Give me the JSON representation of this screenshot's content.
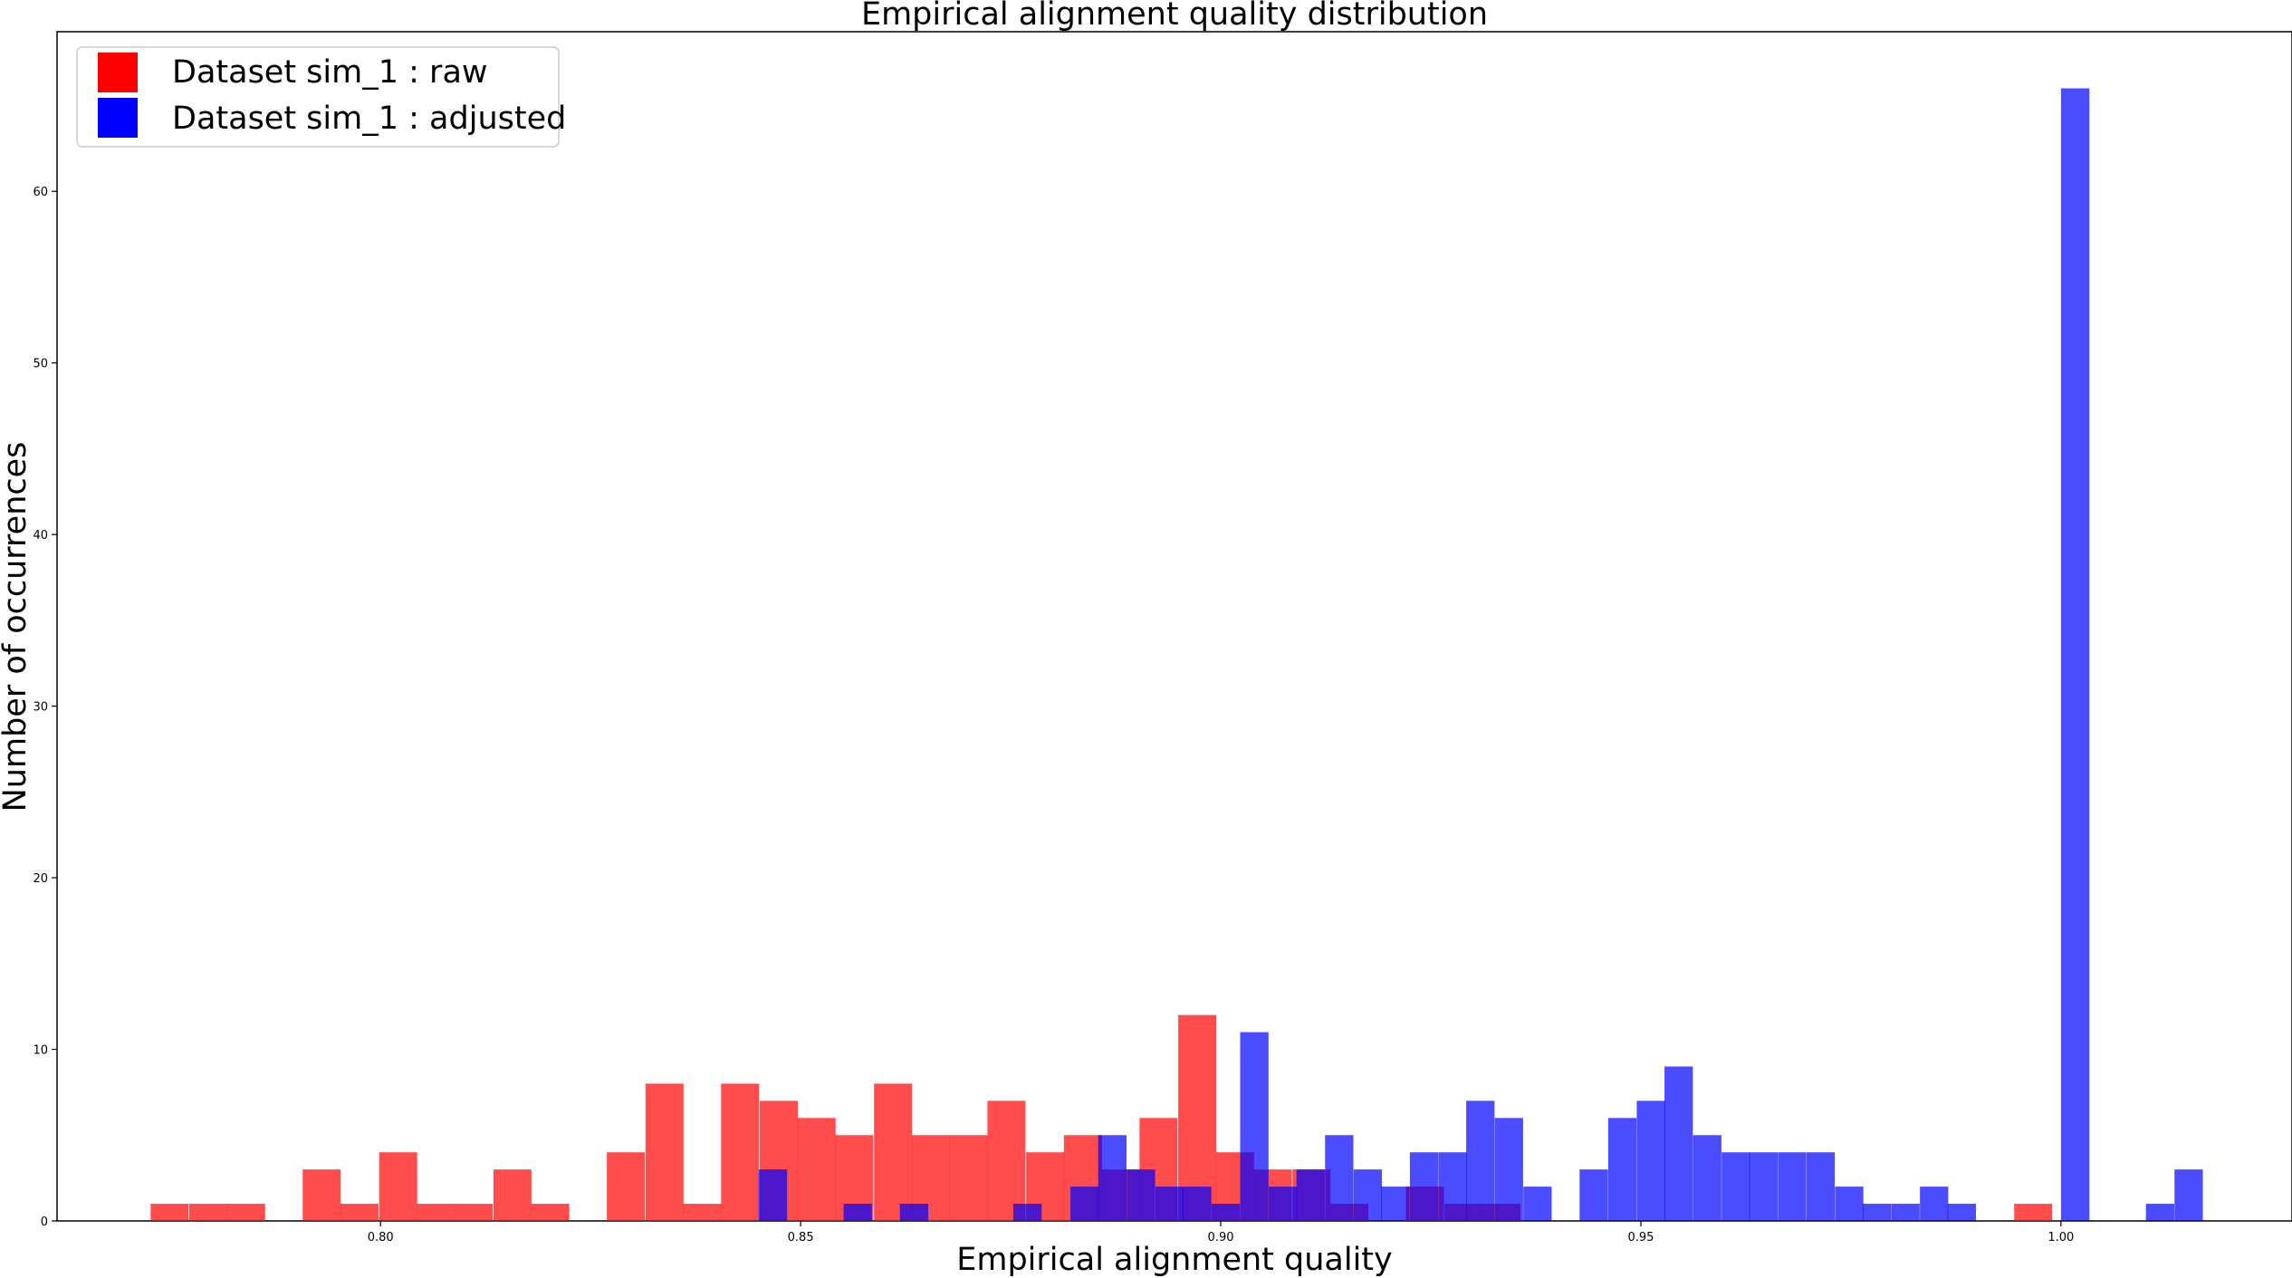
{
  "chart_data": {
    "type": "bar",
    "title": "Empirical alignment quality distribution",
    "xlabel": "Empirical alignment quality",
    "ylabel": "Number of occurrences",
    "xlim": [
      0.7615,
      1.0275
    ],
    "ylim": [
      0,
      69.3
    ],
    "xticks": [
      "0.80",
      "0.85",
      "0.90",
      "0.95",
      "1.00"
    ],
    "yticks": [
      "0",
      "10",
      "20",
      "30",
      "40",
      "50",
      "60"
    ],
    "legend_position": "upper-left",
    "grid": false,
    "series": [
      {
        "name": "Dataset sim_1 : raw",
        "color": "#ff0000",
        "bin_width": 0.004525,
        "bins": [
          {
            "x": 0.7749,
            "count": 1
          },
          {
            "x": 0.7795,
            "count": 1
          },
          {
            "x": 0.784,
            "count": 1
          },
          {
            "x": 0.793,
            "count": 3
          },
          {
            "x": 0.7975,
            "count": 1
          },
          {
            "x": 0.8021,
            "count": 4
          },
          {
            "x": 0.8066,
            "count": 1
          },
          {
            "x": 0.8111,
            "count": 1
          },
          {
            "x": 0.8157,
            "count": 3
          },
          {
            "x": 0.8202,
            "count": 1
          },
          {
            "x": 0.8292,
            "count": 4
          },
          {
            "x": 0.8338,
            "count": 8
          },
          {
            "x": 0.8383,
            "count": 1
          },
          {
            "x": 0.8428,
            "count": 8
          },
          {
            "x": 0.8474,
            "count": 7
          },
          {
            "x": 0.8519,
            "count": 6
          },
          {
            "x": 0.8564,
            "count": 5
          },
          {
            "x": 0.861,
            "count": 8
          },
          {
            "x": 0.8655,
            "count": 5
          },
          {
            "x": 0.87,
            "count": 5
          },
          {
            "x": 0.8745,
            "count": 7
          },
          {
            "x": 0.8791,
            "count": 4
          },
          {
            "x": 0.8836,
            "count": 5
          },
          {
            "x": 0.8881,
            "count": 3
          },
          {
            "x": 0.8926,
            "count": 6
          },
          {
            "x": 0.8972,
            "count": 12
          },
          {
            "x": 0.9017,
            "count": 4
          },
          {
            "x": 0.9062,
            "count": 3
          },
          {
            "x": 0.9108,
            "count": 3
          },
          {
            "x": 0.9153,
            "count": 1
          },
          {
            "x": 0.9243,
            "count": 2
          },
          {
            "x": 0.9289,
            "count": 1
          },
          {
            "x": 0.9334,
            "count": 1
          },
          {
            "x": 0.9967,
            "count": 1
          }
        ]
      },
      {
        "name": "Dataset sim_1 : adjusted",
        "color": "#0000ff",
        "bin_width": 0.003372,
        "bins": [
          {
            "x": 0.8467,
            "count": 3
          },
          {
            "x": 0.8568,
            "count": 1
          },
          {
            "x": 0.8635,
            "count": 1
          },
          {
            "x": 0.877,
            "count": 1
          },
          {
            "x": 0.8838,
            "count": 2
          },
          {
            "x": 0.8871,
            "count": 5
          },
          {
            "x": 0.8905,
            "count": 3
          },
          {
            "x": 0.8939,
            "count": 2
          },
          {
            "x": 0.8972,
            "count": 2
          },
          {
            "x": 0.9006,
            "count": 1
          },
          {
            "x": 0.904,
            "count": 11
          },
          {
            "x": 0.9074,
            "count": 2
          },
          {
            "x": 0.9107,
            "count": 3
          },
          {
            "x": 0.9141,
            "count": 5
          },
          {
            "x": 0.9175,
            "count": 3
          },
          {
            "x": 0.9208,
            "count": 2
          },
          {
            "x": 0.9242,
            "count": 4
          },
          {
            "x": 0.9276,
            "count": 4
          },
          {
            "x": 0.9309,
            "count": 7
          },
          {
            "x": 0.9343,
            "count": 6
          },
          {
            "x": 0.9377,
            "count": 2
          },
          {
            "x": 0.9444,
            "count": 3
          },
          {
            "x": 0.9478,
            "count": 6
          },
          {
            "x": 0.9512,
            "count": 7
          },
          {
            "x": 0.9545,
            "count": 9
          },
          {
            "x": 0.9579,
            "count": 5
          },
          {
            "x": 0.9613,
            "count": 4
          },
          {
            "x": 0.9646,
            "count": 4
          },
          {
            "x": 0.968,
            "count": 4
          },
          {
            "x": 0.9714,
            "count": 4
          },
          {
            "x": 0.9748,
            "count": 2
          },
          {
            "x": 0.9781,
            "count": 1
          },
          {
            "x": 0.9815,
            "count": 1
          },
          {
            "x": 0.9849,
            "count": 2
          },
          {
            "x": 0.9882,
            "count": 1
          },
          {
            "x": 1.0017,
            "count": 66
          },
          {
            "x": 1.0118,
            "count": 1
          },
          {
            "x": 1.0152,
            "count": 3
          }
        ]
      }
    ]
  }
}
